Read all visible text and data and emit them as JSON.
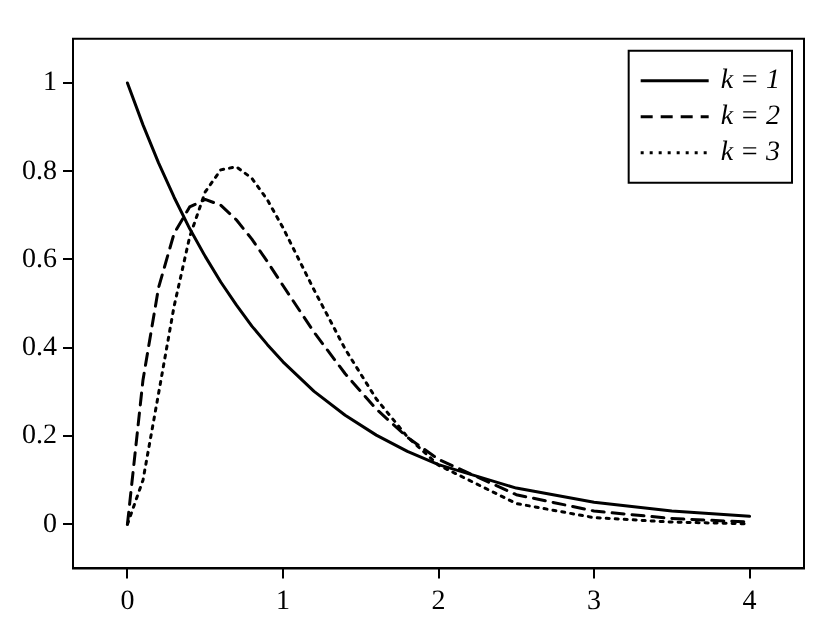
{
  "chart_data": {
    "type": "line",
    "x": [
      0,
      0.1,
      0.2,
      0.3,
      0.4,
      0.5,
      0.6,
      0.7,
      0.8,
      0.9,
      1,
      1.2,
      1.4,
      1.6,
      1.8,
      2,
      2.5,
      3,
      3.5,
      4
    ],
    "series": [
      {
        "name": "k = 1",
        "color": "#000000",
        "line_style": "solid",
        "values": [
          1,
          0.905,
          0.819,
          0.741,
          0.67,
          0.607,
          0.549,
          0.497,
          0.449,
          0.407,
          0.368,
          0.301,
          0.247,
          0.202,
          0.165,
          0.135,
          0.082,
          0.05,
          0.03,
          0.018
        ]
      },
      {
        "name": "k = 2",
        "color": "#000000",
        "line_style": "dashed",
        "values": [
          0,
          0.327,
          0.536,
          0.659,
          0.719,
          0.736,
          0.723,
          0.69,
          0.646,
          0.595,
          0.541,
          0.435,
          0.341,
          0.261,
          0.197,
          0.147,
          0.067,
          0.03,
          0.013,
          0.005
        ]
      },
      {
        "name": "k = 3",
        "color": "#000000",
        "line_style": "dotted",
        "values": [
          0,
          0.1,
          0.296,
          0.494,
          0.651,
          0.753,
          0.803,
          0.81,
          0.784,
          0.735,
          0.672,
          0.531,
          0.397,
          0.284,
          0.198,
          0.134,
          0.047,
          0.015,
          0.005,
          0.001
        ]
      }
    ],
    "xlim": [
      -0.35,
      4.35
    ],
    "xticks": [
      0,
      1,
      2,
      3,
      4
    ],
    "ylim": [
      -0.1,
      1.1
    ],
    "yticks": [
      0,
      0.2,
      0.4,
      0.6,
      0.8,
      1
    ],
    "marker": "none",
    "grid": false,
    "legend": "top right"
  }
}
